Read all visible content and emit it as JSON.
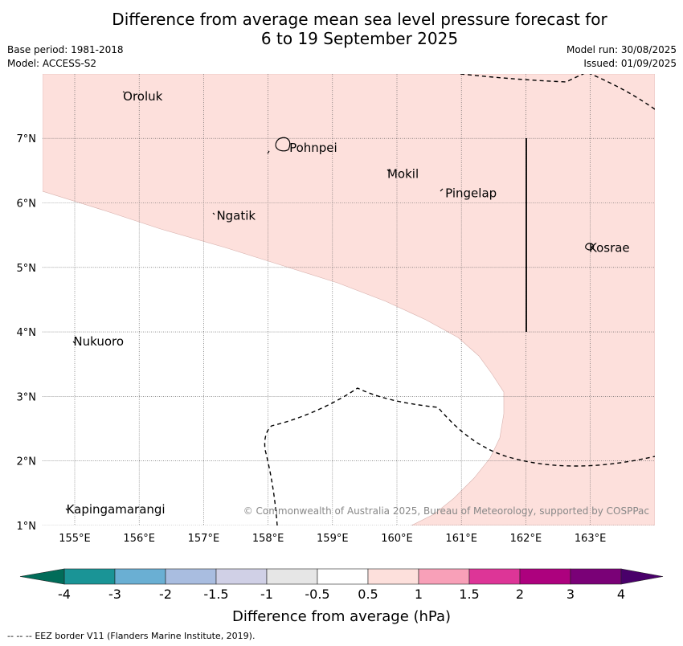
{
  "title_line1": "Difference from average mean sea level pressure forecast for",
  "title_line2": "6 to 19 September 2025",
  "base_period": "Base period: 1981-2018",
  "model": "Model: ACCESS-S2",
  "model_run": "Model run: 30/08/2025",
  "issued": "Issued: 01/09/2025",
  "copyright": "© Commonwealth of Australia 2025, Bureau of Meteorology, supported by COSPPac",
  "colorbar_label": "Difference from average (hPa)",
  "footer_legend": "EEZ border V11 (Flanders Marine Institute, 2019).",
  "footer_dashes": "-- -- --",
  "map": {
    "lon_ticks": [
      "155°E",
      "156°E",
      "157°E",
      "158°E",
      "159°E",
      "160°E",
      "161°E",
      "162°E",
      "163°E"
    ],
    "lon_values": [
      155,
      156,
      157,
      158,
      159,
      160,
      161,
      162,
      163
    ],
    "lat_ticks": [
      "1°N",
      "2°N",
      "3°N",
      "4°N",
      "5°N",
      "6°N",
      "7°N"
    ],
    "lat_values": [
      1,
      2,
      3,
      4,
      5,
      6,
      7
    ],
    "lon_range": [
      154.5,
      164
    ],
    "lat_range": [
      1,
      8
    ],
    "places": [
      {
        "name": "Oroluk",
        "lon": 155.75,
        "lat": 7.65
      },
      {
        "name": "Pohnpei",
        "lon": 158.33,
        "lat": 6.85
      },
      {
        "name": "Mokil",
        "lon": 159.85,
        "lat": 6.45
      },
      {
        "name": "Pingelap",
        "lon": 160.75,
        "lat": 6.15
      },
      {
        "name": "Ngatik",
        "lon": 157.2,
        "lat": 5.8
      },
      {
        "name": "Kosrae",
        "lon": 162.98,
        "lat": 5.3
      },
      {
        "name": "Nukuoro",
        "lon": 154.98,
        "lat": 3.85
      },
      {
        "name": "Kapingamarangi",
        "lon": 154.87,
        "lat": 1.25
      }
    ],
    "anomaly_fill_color": "#fde0dc"
  },
  "colorbar": {
    "tick_labels": [
      "-4",
      "-3",
      "-2",
      "-1.5",
      "-1",
      "-0.5",
      "0.5",
      "1",
      "1.5",
      "2",
      "3",
      "4"
    ],
    "colors": [
      "#1a9496",
      "#6aafd3",
      "#a9bde0",
      "#d0d0e6",
      "#e6e6e6",
      "#ffffff",
      "#fde0dc",
      "#f8a0b8",
      "#dd3597",
      "#ad017e",
      "#7a0177"
    ],
    "extend_low_color": "#016c59",
    "extend_high_color": "#49006a"
  }
}
